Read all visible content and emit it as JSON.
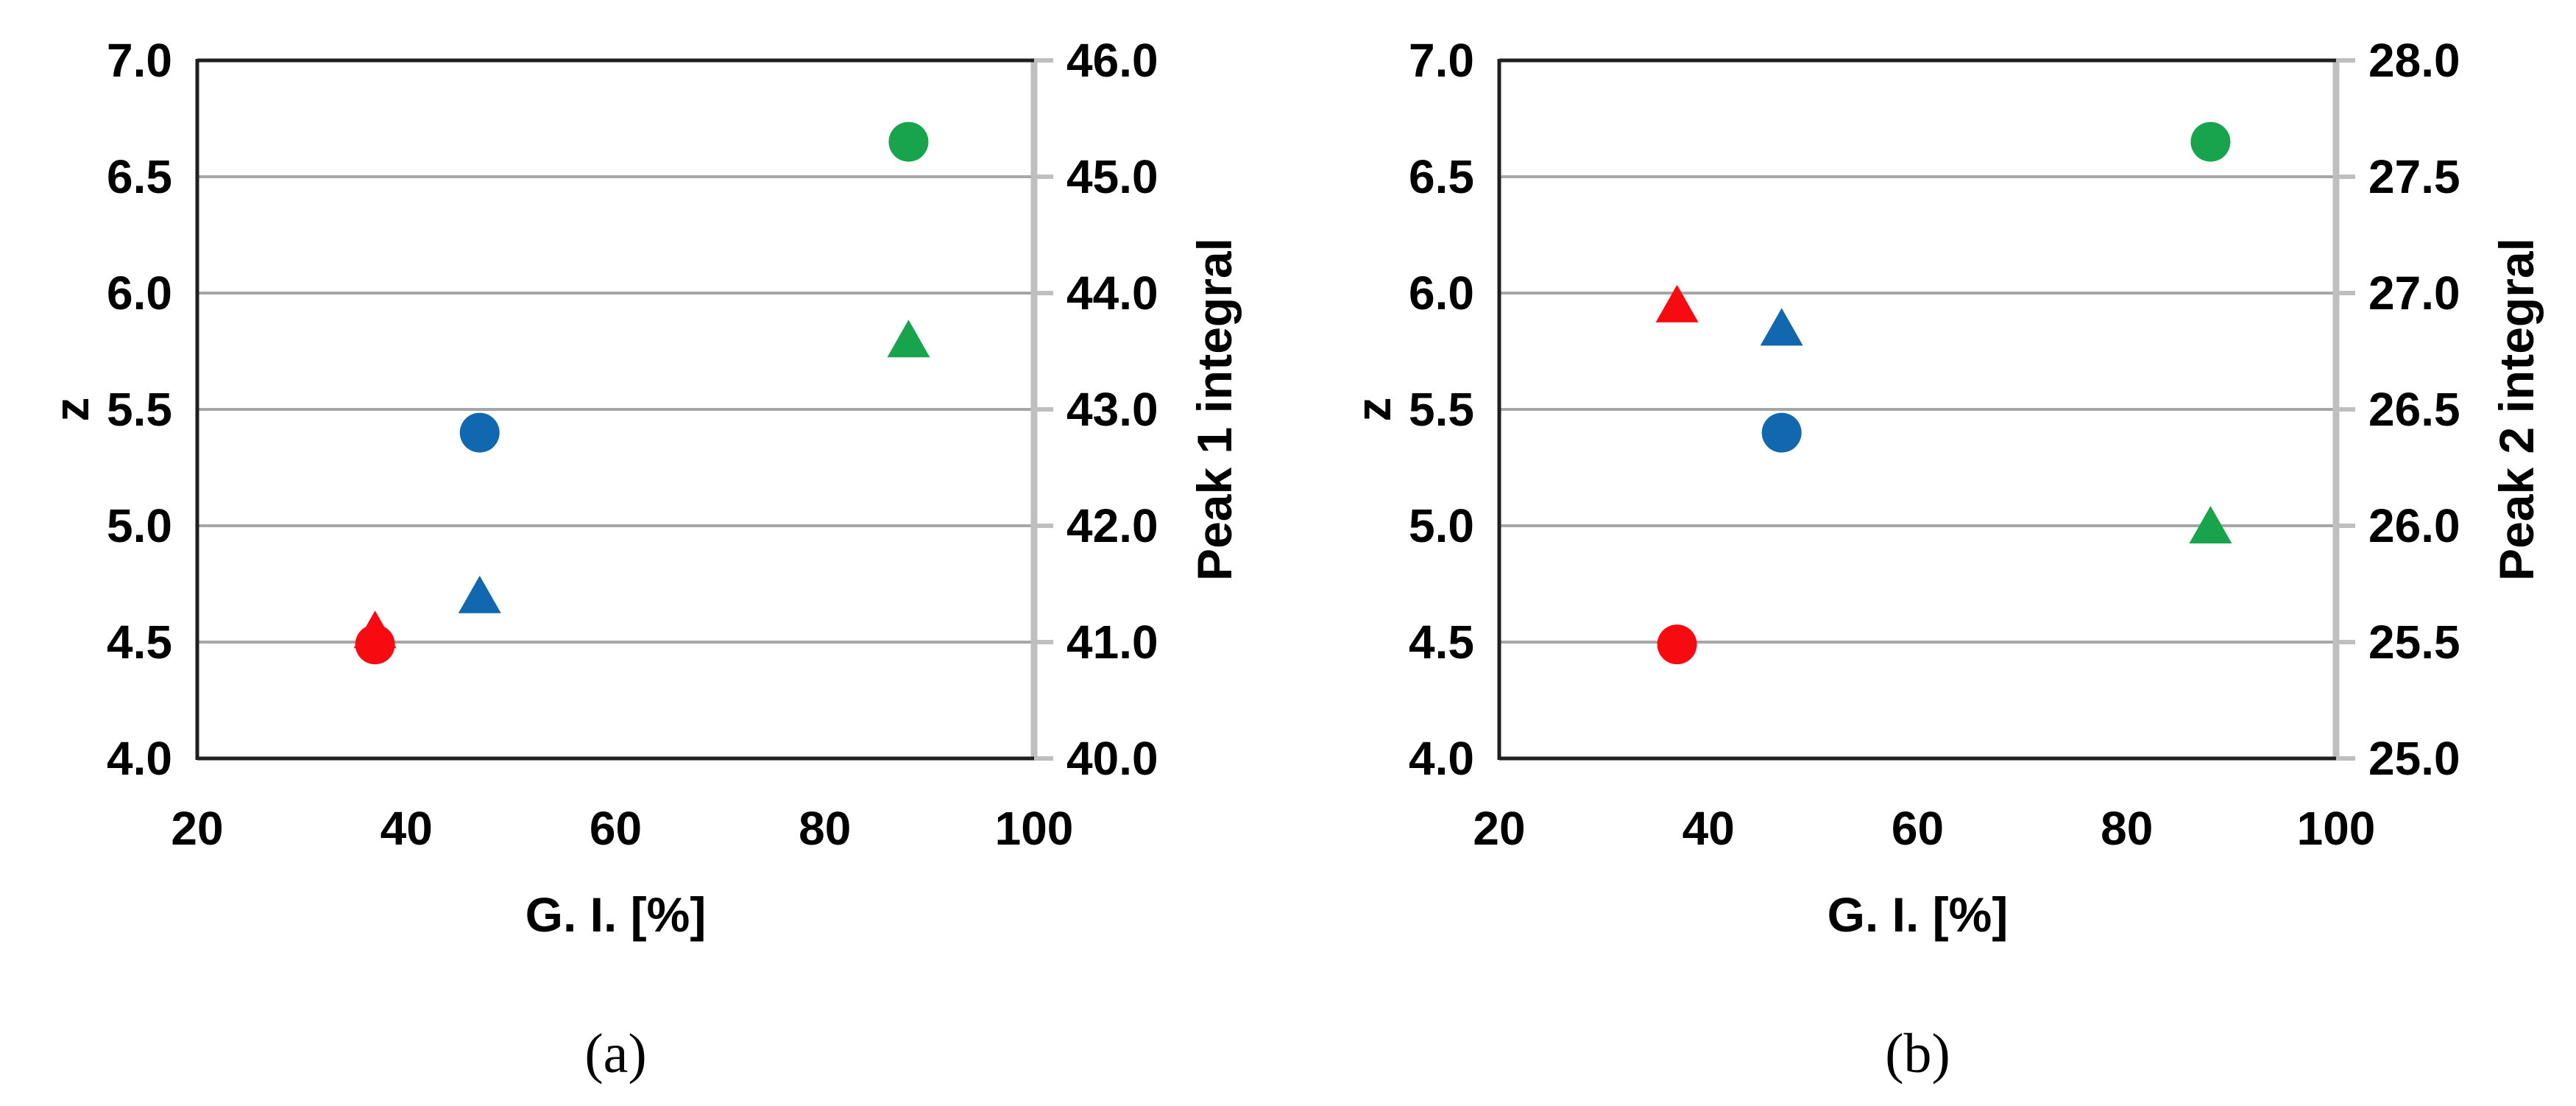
{
  "figure": {
    "background": "#ffffff",
    "panel_captions": [
      "(a)",
      "(b)"
    ]
  },
  "palette": {
    "red": "#f80b10",
    "blue": "#1268ae",
    "green": "#17a44c",
    "gridline": "#a6a6a6",
    "frame": "#1f1f1f",
    "secondary_axis": "#bfbfbf",
    "text": "#000000"
  },
  "chart_data": [
    {
      "id": "a",
      "type": "scatter",
      "caption": "(a)",
      "xlabel": "G. I. [%]",
      "ylabel_left": "z",
      "ylabel_right": "Peak 1 integral",
      "grid": true,
      "legend": false,
      "x_axis": {
        "min": 20,
        "max": 100,
        "step": 20,
        "tick_labels": [
          "20",
          "40",
          "60",
          "80",
          "100"
        ]
      },
      "y_left_axis": {
        "min": 4.0,
        "max": 7.0,
        "step": 0.5,
        "tick_labels": [
          "7.0",
          "6.5",
          "6.0",
          "5.5",
          "5.0",
          "4.5",
          "4.0"
        ]
      },
      "y_right_axis": {
        "min": 40.0,
        "max": 46.0,
        "step": 1.0,
        "tick_labels": [
          "46.0",
          "45.0",
          "44.0",
          "43.0",
          "42.0",
          "41.0",
          "40.0"
        ]
      },
      "series": [
        {
          "name": "Peak 1 integral",
          "marker": "triangle",
          "axis": "right",
          "points": [
            {
              "x": 37,
              "y": 41.1,
              "color": "red"
            },
            {
              "x": 47,
              "y": 41.4,
              "color": "blue"
            },
            {
              "x": 88,
              "y": 43.6,
              "color": "green"
            }
          ]
        },
        {
          "name": "z",
          "marker": "circle",
          "axis": "left",
          "points": [
            {
              "x": 37,
              "y": 4.49,
              "color": "red"
            },
            {
              "x": 47,
              "y": 5.4,
              "color": "blue"
            },
            {
              "x": 88,
              "y": 6.65,
              "color": "green"
            }
          ]
        }
      ]
    },
    {
      "id": "b",
      "type": "scatter",
      "caption": "(b)",
      "xlabel": "G. I. [%]",
      "ylabel_left": "z",
      "ylabel_right": "Peak 2 integral",
      "grid": true,
      "legend": false,
      "x_axis": {
        "min": 20,
        "max": 100,
        "step": 20,
        "tick_labels": [
          "20",
          "40",
          "60",
          "80",
          "100"
        ]
      },
      "y_left_axis": {
        "min": 4.0,
        "max": 7.0,
        "step": 0.5,
        "tick_labels": [
          "7.0",
          "6.5",
          "6.0",
          "5.5",
          "5.0",
          "4.5",
          "4.0"
        ]
      },
      "y_right_axis": {
        "min": 25.0,
        "max": 28.0,
        "step": 0.5,
        "tick_labels": [
          "28.0",
          "27.5",
          "27.0",
          "26.5",
          "26.0",
          "25.5",
          "25.0"
        ]
      },
      "series": [
        {
          "name": "Peak 2 integral",
          "marker": "triangle",
          "axis": "right",
          "points": [
            {
              "x": 37,
              "y": 26.95,
              "color": "red"
            },
            {
              "x": 47,
              "y": 26.85,
              "color": "blue"
            },
            {
              "x": 88,
              "y": 26.0,
              "color": "green"
            }
          ]
        },
        {
          "name": "z",
          "marker": "circle",
          "axis": "left",
          "points": [
            {
              "x": 37,
              "y": 4.49,
              "color": "red"
            },
            {
              "x": 47,
              "y": 5.4,
              "color": "blue"
            },
            {
              "x": 88,
              "y": 6.65,
              "color": "green"
            }
          ]
        }
      ]
    }
  ]
}
